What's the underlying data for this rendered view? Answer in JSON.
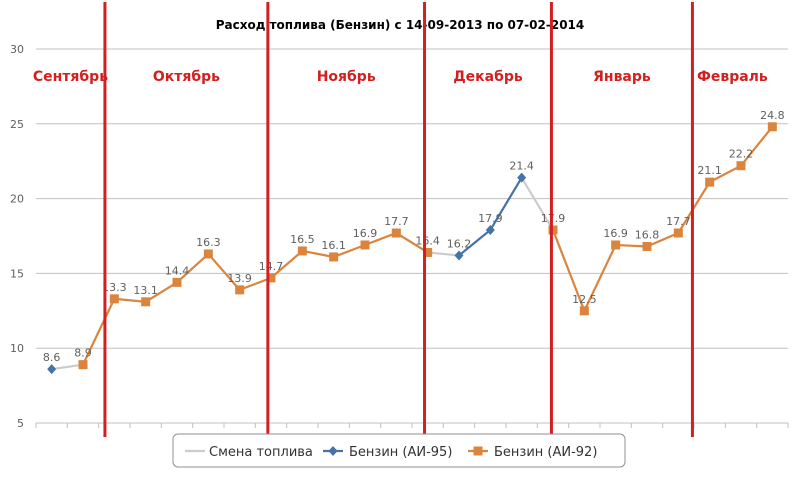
{
  "chart_data": {
    "type": "line",
    "title": "Расход топлива (Бензин) с 14-09-2013 по 07-02-2014",
    "xlabel": "",
    "ylabel": "",
    "ylim": [
      5,
      30
    ],
    "yticks": [
      5,
      10,
      15,
      20,
      25,
      30
    ],
    "grid": true,
    "legend_position": "bottom-center",
    "values": [
      8.6,
      8.9,
      13.3,
      13.1,
      14.4,
      16.3,
      13.9,
      14.7,
      16.5,
      16.1,
      16.9,
      17.7,
      16.4,
      16.2,
      17.9,
      21.4,
      17.9,
      12.5,
      16.9,
      16.8,
      17.7,
      21.1,
      22.2,
      24.8
    ],
    "series": [
      {
        "name": "Смена топлива",
        "color": "#cccccc",
        "marker": "none",
        "points": [
          [
            0,
            8.6
          ],
          [
            1,
            8.9
          ],
          [
            12,
            16.4
          ],
          [
            13,
            16.2
          ],
          [
            15,
            21.4
          ],
          [
            16,
            17.9
          ]
        ]
      },
      {
        "name": "Бензин (АИ-95)",
        "color": "#4572a7",
        "marker": "diamond",
        "points": [
          [
            0,
            8.6
          ],
          [
            13,
            16.2
          ],
          [
            14,
            17.9
          ],
          [
            15,
            21.4
          ]
        ]
      },
      {
        "name": "Бензин (АИ-92)",
        "color": "#db843d",
        "marker": "square",
        "points": [
          [
            1,
            8.9
          ],
          [
            2,
            13.3
          ],
          [
            3,
            13.1
          ],
          [
            4,
            14.4
          ],
          [
            5,
            16.3
          ],
          [
            6,
            13.9
          ],
          [
            7,
            14.7
          ],
          [
            8,
            16.5
          ],
          [
            9,
            16.1
          ],
          [
            10,
            16.9
          ],
          [
            11,
            17.7
          ],
          [
            12,
            16.4
          ],
          [
            16,
            17.9
          ],
          [
            17,
            12.5
          ],
          [
            18,
            16.9
          ],
          [
            19,
            16.8
          ],
          [
            20,
            17.7
          ],
          [
            21,
            21.1
          ],
          [
            22,
            22.2
          ],
          [
            23,
            24.8
          ]
        ]
      }
    ],
    "months": [
      {
        "label": "Сентябрь",
        "start": 0,
        "end": 2.2
      },
      {
        "label": "Октябрь",
        "start": 2.2,
        "end": 7.4
      },
      {
        "label": "Ноябрь",
        "start": 7.4,
        "end": 12.4
      },
      {
        "label": "Декабрь",
        "start": 12.4,
        "end": 16.45
      },
      {
        "label": "Январь",
        "start": 16.45,
        "end": 20.95
      },
      {
        "label": "Февраль",
        "start": 20.95,
        "end": 23.5
      }
    ],
    "month_dividers": [
      2.2,
      7.4,
      12.4,
      16.45,
      20.95
    ],
    "colors": {
      "divider": "#d22020",
      "month_label": "#d22020",
      "grid": "#c0c0c0",
      "axis_text": "#606060",
      "data_label": "#606060"
    }
  }
}
